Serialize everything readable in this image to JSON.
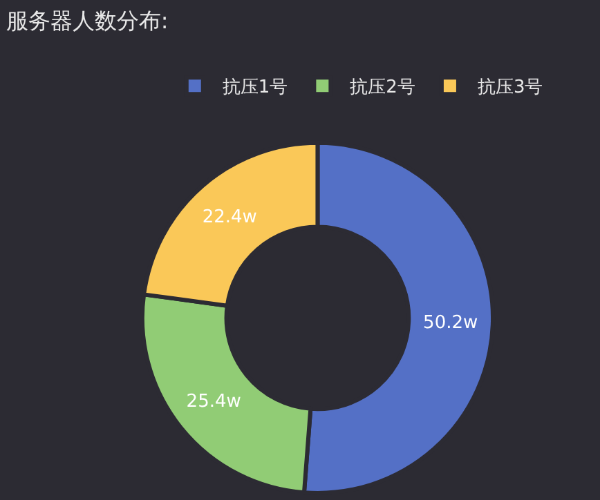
{
  "chart_data": {
    "type": "donut",
    "title": "服务器人数分布:",
    "categories": [
      "抗压1号",
      "抗压2号",
      "抗压3号"
    ],
    "values": [
      50.2,
      25.4,
      22.4
    ],
    "value_labels": [
      "50.2w",
      "25.4w",
      "22.4w"
    ],
    "colors": [
      "#5470c6",
      "#91cc75",
      "#fac858"
    ],
    "legend": "top"
  }
}
